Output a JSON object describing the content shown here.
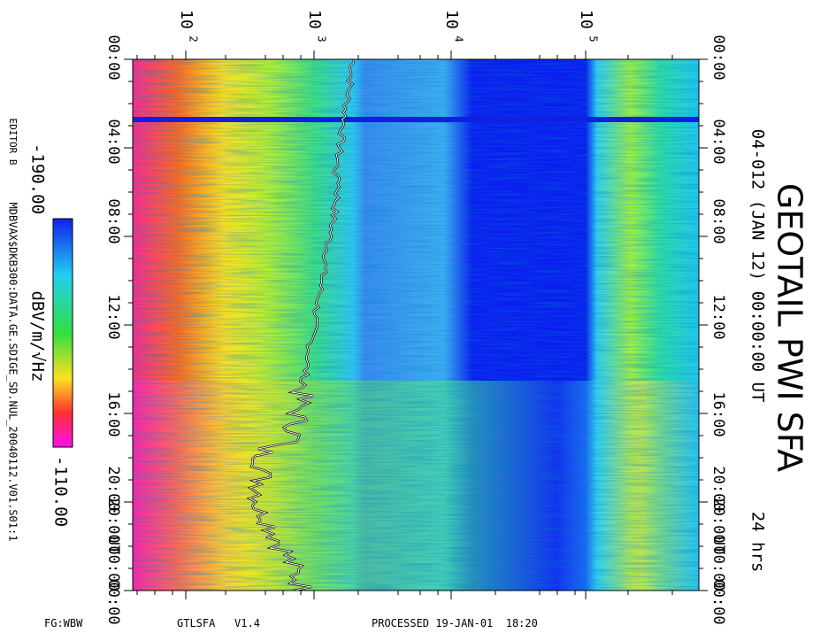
{
  "header": {
    "title": "GEOTAIL PWI SFA",
    "subtitle": "04-012 (JAN 12) 00:00:00 UT",
    "duration": "24 hrs"
  },
  "frequency_axis": {
    "base": "10",
    "exponents": [
      "2",
      "3",
      "4",
      "5"
    ]
  },
  "left_axis": {
    "labels": [
      "00:00",
      "04:00",
      "08:00",
      "12:00",
      "16:00",
      "20:00",
      "20:00",
      "UT",
      "00:00",
      "00:00"
    ]
  },
  "right_axis": {
    "labels": [
      "00:00",
      "04:00",
      "08:00",
      "12:00",
      "16:00",
      "20:00",
      "20:00",
      "UT",
      "00:00",
      "00:00"
    ]
  },
  "colorbar": {
    "min": "-190.00",
    "unit": "dBV/m/√Hz",
    "max": "-110.00"
  },
  "meta": {
    "editor": "EDITOR B",
    "path": "MDBVAX$DKB300:DATA.GE.SDIGE_SD.NUL_20040112.V01.S01:1"
  },
  "footer": {
    "flag": "FG:WBW",
    "program": "GTLSFA   V1.4",
    "processed": "PROCESSED 19-JAN-01  18:20"
  }
}
